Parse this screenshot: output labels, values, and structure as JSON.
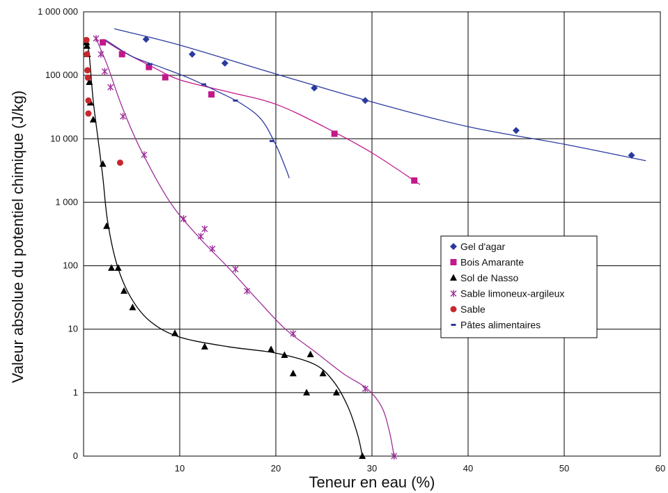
{
  "chart_data": {
    "type": "scatter",
    "xlabel": "Teneur en eau (%)",
    "ylabel": "Valeur absolue du potentiel chimique (J/kg)",
    "xlim": [
      0,
      60
    ],
    "x_ticks": [
      "10",
      "20",
      "30",
      "40",
      "50",
      "60"
    ],
    "y_scale": "log",
    "y_ticks": [
      "0",
      "1",
      "10",
      "100",
      "1 000",
      "10 000",
      "100 000",
      "1 000 000"
    ],
    "grid": true,
    "legend_position": "right",
    "series": [
      {
        "name": "Gel d'agar",
        "marker": "diamond",
        "color": "#2b3a9e",
        "points": [
          [
            6.5,
            370000
          ],
          [
            11.3,
            215000
          ],
          [
            14.7,
            155000
          ],
          [
            24,
            63000
          ],
          [
            29.3,
            40000
          ],
          [
            45,
            13500
          ],
          [
            57,
            5500
          ]
        ],
        "trend": [
          [
            3.2,
            540000
          ],
          [
            10,
            300000
          ],
          [
            20,
            105000
          ],
          [
            30,
            38000
          ],
          [
            40,
            15500
          ],
          [
            50,
            8200
          ],
          [
            58.5,
            4500
          ]
        ]
      },
      {
        "name": "Bois Amarante",
        "marker": "square",
        "color": "#c2188a",
        "points": [
          [
            2,
            330000
          ],
          [
            4,
            215000
          ],
          [
            6.8,
            135000
          ],
          [
            8.5,
            93000
          ],
          [
            13.3,
            50000
          ],
          [
            26.1,
            12000
          ],
          [
            34.4,
            2200
          ]
        ],
        "trend": [
          [
            2,
            370000
          ],
          [
            4,
            240000
          ],
          [
            7,
            140000
          ],
          [
            10,
            85000
          ],
          [
            15,
            55000
          ],
          [
            20,
            35000
          ],
          [
            25,
            15500
          ],
          [
            30,
            6000
          ],
          [
            35,
            1900
          ]
        ]
      },
      {
        "name": "Sol de Nasso",
        "marker": "triangle",
        "color": "#000000",
        "points": [
          [
            0.3,
            330000
          ],
          [
            0.35,
            290000
          ],
          [
            0.4,
            215000
          ],
          [
            0.6,
            78000
          ],
          [
            0.7,
            37000
          ],
          [
            1,
            20000
          ],
          [
            2,
            4000
          ],
          [
            2.4,
            420
          ],
          [
            2.9,
            92
          ],
          [
            3.6,
            92
          ],
          [
            4.2,
            40
          ],
          [
            5.1,
            22
          ],
          [
            9.5,
            8.6
          ],
          [
            12.6,
            5.3
          ],
          [
            19.5,
            4.8
          ],
          [
            20.9,
            3.9
          ],
          [
            21.8,
            2
          ],
          [
            23.2,
            1
          ],
          [
            23.6,
            4
          ],
          [
            24.9,
            2
          ],
          [
            26.3,
            1
          ],
          [
            29,
            0.1
          ]
        ],
        "trend": [
          [
            0.35,
            360000
          ],
          [
            0.6,
            200000
          ],
          [
            1,
            40000
          ],
          [
            1.5,
            10000
          ],
          [
            2,
            2500
          ],
          [
            2.5,
            500
          ],
          [
            3.5,
            100
          ],
          [
            5,
            30
          ],
          [
            7,
            13
          ],
          [
            10,
            7.5
          ],
          [
            15,
            5.3
          ],
          [
            20,
            4.2
          ],
          [
            24,
            2.8
          ],
          [
            26,
            1.5
          ],
          [
            27.5,
            0.6
          ],
          [
            28.5,
            0.22
          ],
          [
            29,
            0.1
          ]
        ]
      },
      {
        "name": "Sable limoneux-argileux",
        "marker": "star",
        "color": "#9e2f9a",
        "points": [
          [
            1.3,
            380000
          ],
          [
            1.8,
            215000
          ],
          [
            2.2,
            115000
          ],
          [
            2.8,
            65000
          ],
          [
            4.1,
            22500
          ],
          [
            6.3,
            5600
          ],
          [
            10.4,
            550
          ],
          [
            12.2,
            290
          ],
          [
            12.6,
            380
          ],
          [
            13.4,
            185
          ],
          [
            15.8,
            88
          ],
          [
            17,
            40
          ],
          [
            21.8,
            8.5
          ],
          [
            29.3,
            1.15
          ],
          [
            32.3,
            0.1
          ]
        ],
        "trend": [
          [
            1.3,
            380000
          ],
          [
            2.5,
            140000
          ],
          [
            4,
            32000
          ],
          [
            6,
            6500
          ],
          [
            9,
            1000
          ],
          [
            12,
            280
          ],
          [
            15,
            95
          ],
          [
            18,
            30
          ],
          [
            21,
            10
          ],
          [
            24,
            4.5
          ],
          [
            27,
            2
          ],
          [
            29.5,
            1.15
          ],
          [
            31,
            0.6
          ],
          [
            31.8,
            0.25
          ],
          [
            32.3,
            0.1
          ]
        ]
      },
      {
        "name": "Sable",
        "marker": "circle",
        "color": "#c8272d",
        "points": [
          [
            0.3,
            360000
          ],
          [
            0.35,
            215000
          ],
          [
            0.4,
            120000
          ],
          [
            0.45,
            92000
          ],
          [
            0.5,
            40000
          ],
          [
            0.5,
            25000
          ],
          [
            3.8,
            4200
          ]
        ]
      },
      {
        "name": "Pâtes alimentaires",
        "marker": "dash",
        "color": "#2b3a9e",
        "points": [
          [
            6.9,
            150000
          ],
          [
            12.5,
            72000
          ],
          [
            15.8,
            40000
          ],
          [
            19.6,
            9200
          ]
        ],
        "trend": [
          [
            2.3,
            360000
          ],
          [
            5,
            200000
          ],
          [
            8,
            135000
          ],
          [
            11,
            90000
          ],
          [
            14,
            55000
          ],
          [
            16.5,
            35000
          ],
          [
            18.5,
            20000
          ],
          [
            20,
            8000
          ],
          [
            21,
            3500
          ],
          [
            21.4,
            2400
          ]
        ]
      }
    ]
  }
}
